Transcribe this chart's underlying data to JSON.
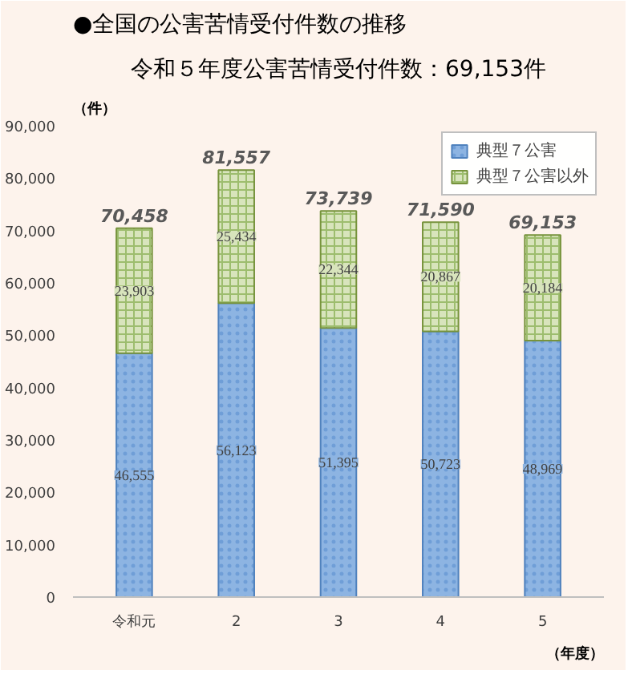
{
  "chart_data": {
    "type": "bar",
    "title": "●全国の公害苦情受付件数の推移",
    "subtitle": "令和５年度公害苦情受付件数：69,153件",
    "ylabel": "（件）",
    "xlabel": "（年度）",
    "categories": [
      "令和元",
      "2",
      "3",
      "4",
      "5"
    ],
    "stacked": true,
    "legend": "top right",
    "grid": false,
    "ylim": [
      0,
      90000
    ],
    "yticks": [
      0,
      {
        "value": 10000,
        "label": "10,000"
      },
      {
        "value": 20000,
        "label": "20,000"
      },
      {
        "value": 30000,
        "label": "30,000"
      },
      {
        "value": 40000,
        "label": "40,000"
      },
      {
        "value": 50000,
        "label": "50,000"
      },
      {
        "value": 60000,
        "label": "60,000"
      },
      {
        "value": 70000,
        "label": "70,000"
      },
      {
        "value": 80000,
        "label": "80,000"
      },
      {
        "value": 90000,
        "label": "90,000"
      }
    ],
    "series": [
      {
        "name": "典型７公害",
        "color": "#8db4e2",
        "values": [
          46555,
          56123,
          51395,
          50723,
          48969
        ],
        "value_labels": [
          "46,555",
          "56,123",
          "51,395",
          "50,723",
          "48,969"
        ]
      },
      {
        "name": "典型７公害以外",
        "color": "#d8e4bc",
        "values": [
          23903,
          25434,
          22344,
          20867,
          20184
        ],
        "value_labels": [
          "23,903",
          "25,434",
          "22,344",
          "20,867",
          "20,184"
        ]
      }
    ],
    "totals": [
      "70,458",
      "81,557",
      "73,739",
      "71,590",
      "69,153"
    ]
  }
}
